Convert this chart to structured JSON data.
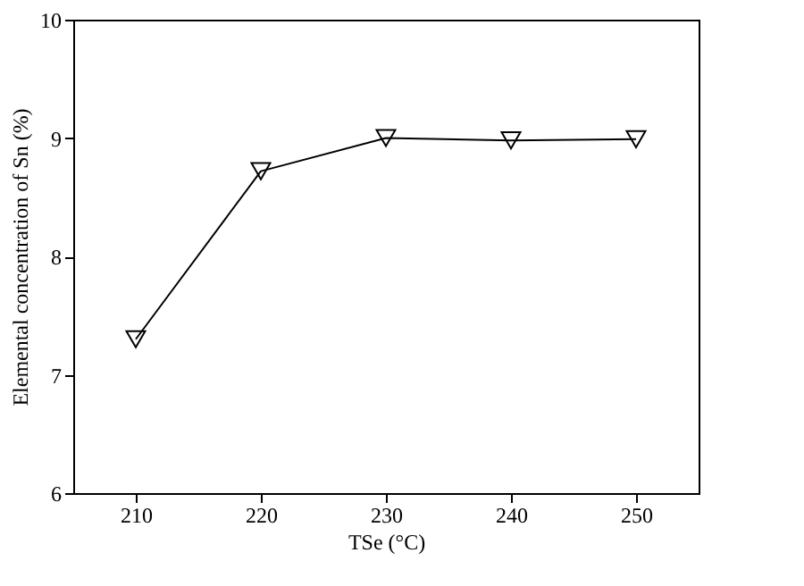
{
  "chart_data": {
    "type": "line",
    "xlabel": "TSe (°C)",
    "ylabel": "Elemental concentration of Sn (%)",
    "x": [
      210,
      220,
      230,
      240,
      250
    ],
    "series": [
      {
        "color": "#000000",
        "values": [
          7.3,
          8.72,
          9.0,
          8.98,
          8.99
        ]
      }
    ],
    "xlim": [
      205,
      255
    ],
    "xticks": [
      210,
      220,
      230,
      240,
      250
    ],
    "ylim": [
      6,
      10
    ],
    "yticks": [
      6,
      7,
      8,
      9,
      10
    ],
    "marker": "triangle",
    "line_style": "solid",
    "grid": false
  }
}
